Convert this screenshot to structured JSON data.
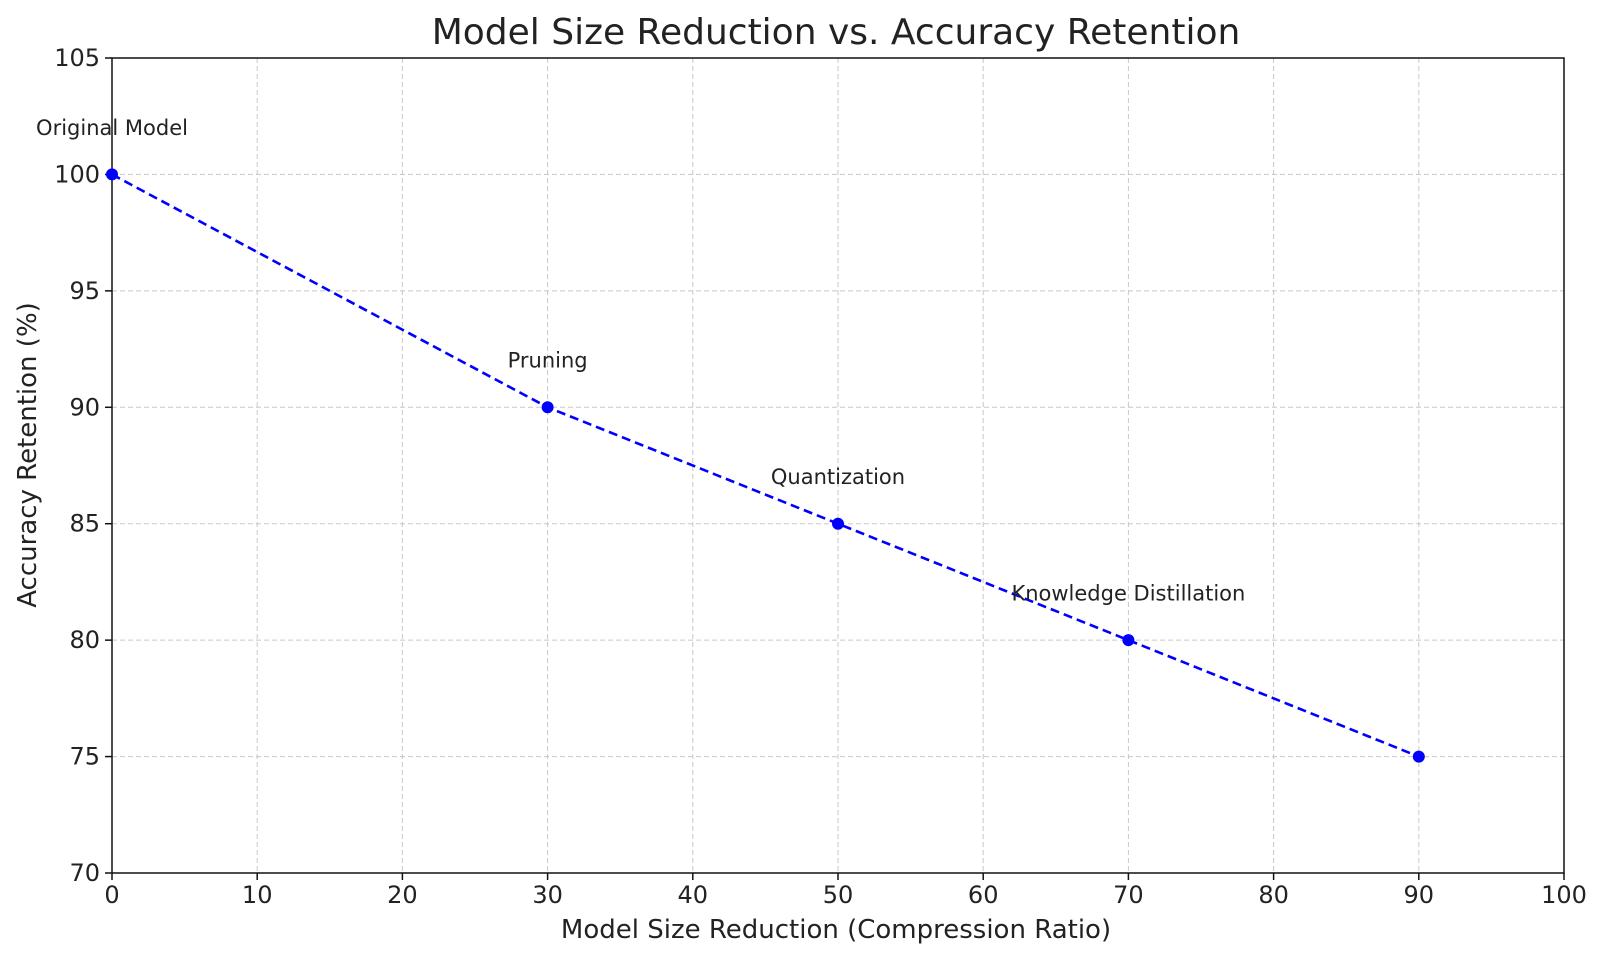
{
  "chart_data": {
    "type": "line",
    "title": "Model Size Reduction vs. Accuracy Retention",
    "xlabel": "Model Size Reduction (Compression Ratio)",
    "ylabel": "Accuracy Retention (%)",
    "xlim": [
      0,
      100
    ],
    "ylim": [
      70,
      105
    ],
    "xticks": [
      0,
      10,
      20,
      30,
      40,
      50,
      60,
      70,
      80,
      90,
      100
    ],
    "yticks": [
      70,
      75,
      80,
      85,
      90,
      95,
      100,
      105
    ],
    "grid": true,
    "series": [
      {
        "color": "#0000ff",
        "line_style": "dashed",
        "marker": "circle",
        "x": [
          0,
          30,
          50,
          70,
          90
        ],
        "y": [
          100,
          90,
          85,
          80,
          75
        ]
      }
    ],
    "annotations": [
      {
        "text": "Original Model",
        "x": 0,
        "y": 102
      },
      {
        "text": "Pruning",
        "x": 30,
        "y": 92
      },
      {
        "text": "Quantization",
        "x": 50,
        "y": 87
      },
      {
        "text": "Knowledge Distillation",
        "x": 70,
        "y": 82
      }
    ]
  }
}
